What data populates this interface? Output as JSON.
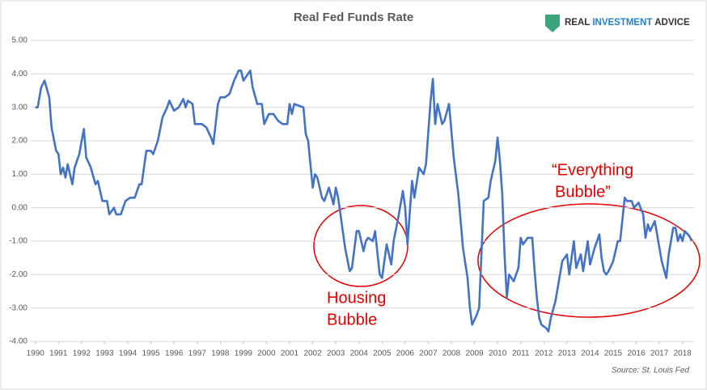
{
  "chart_data": {
    "type": "line",
    "title": "Real Fed Funds Rate",
    "logo": {
      "parts": [
        "REAL",
        "INVESTMENT",
        "ADVICE"
      ]
    },
    "source": "Source: St. Louis Fed",
    "annotations": [
      {
        "lines": [
          "Housing",
          "Bubble"
        ]
      },
      {
        "lines": [
          "“Everything",
          "Bubble”"
        ]
      }
    ],
    "xlim": [
      1989.8,
      2018.5
    ],
    "xticks": [
      1990,
      1991,
      1992,
      1993,
      1994,
      1995,
      1996,
      1997,
      1998,
      1999,
      2000,
      2001,
      2002,
      2003,
      2004,
      2005,
      2006,
      2007,
      2008,
      2009,
      2010,
      2011,
      2012,
      2013,
      2014,
      2015,
      2016,
      2017,
      2018
    ],
    "ylim": [
      -4,
      5
    ],
    "yticks": [
      {
        "value": 5,
        "label": "5.00"
      },
      {
        "value": 4,
        "label": "4.00"
      },
      {
        "value": 3,
        "label": "3.00"
      },
      {
        "value": 2,
        "label": "2.00"
      },
      {
        "value": 1,
        "label": "1.00"
      },
      {
        "value": 0,
        "label": "0.00"
      },
      {
        "value": -1,
        "label": "-1.00"
      },
      {
        "value": -2,
        "label": "-2.00"
      },
      {
        "value": -3,
        "label": "-3.00"
      },
      {
        "value": -4,
        "label": "-4.00"
      }
    ],
    "grid": true,
    "x": [
      1990.0,
      1990.1,
      1990.25,
      1990.4,
      1990.6,
      1990.7,
      1990.9,
      1991.0,
      1991.1,
      1991.2,
      1991.3,
      1991.4,
      1991.6,
      1991.7,
      1991.9,
      1992.0,
      1992.1,
      1992.2,
      1992.4,
      1992.6,
      1992.7,
      1992.9,
      1993.1,
      1993.2,
      1993.4,
      1993.5,
      1993.7,
      1993.9,
      1994.1,
      1994.3,
      1994.5,
      1994.6,
      1994.8,
      1995.0,
      1995.1,
      1995.3,
      1995.5,
      1995.7,
      1995.8,
      1996.0,
      1996.2,
      1996.4,
      1996.5,
      1996.6,
      1996.8,
      1996.9,
      1997.2,
      1997.4,
      1997.6,
      1997.7,
      1997.9,
      1998.0,
      1998.2,
      1998.4,
      1998.6,
      1998.8,
      1998.9,
      1999.0,
      1999.1,
      1999.3,
      1999.4,
      1999.6,
      1999.8,
      1999.9,
      2000.1,
      2000.3,
      2000.5,
      2000.7,
      2000.9,
      2001.0,
      2001.1,
      2001.2,
      2001.4,
      2001.6,
      2001.7,
      2001.8,
      2002.0,
      2002.1,
      2002.2,
      2002.4,
      2002.5,
      2002.7,
      2002.9,
      2003.0,
      2003.1,
      2003.2,
      2003.4,
      2003.6,
      2003.7,
      2003.9,
      2004.0,
      2004.2,
      2004.3,
      2004.4,
      2004.6,
      2004.7,
      2004.9,
      2005.0,
      2005.2,
      2005.4,
      2005.5,
      2005.7,
      2005.9,
      2006.0,
      2006.1,
      2006.3,
      2006.4,
      2006.6,
      2006.8,
      2006.9,
      2007.1,
      2007.2,
      2007.3,
      2007.4,
      2007.6,
      2007.7,
      2007.9,
      2008.1,
      2008.3,
      2008.5,
      2008.7,
      2008.8,
      2008.9,
      2009.1,
      2009.2,
      2009.4,
      2009.6,
      2009.7,
      2009.9,
      2010.0,
      2010.1,
      2010.2,
      2010.3,
      2010.4,
      2010.5,
      2010.7,
      2010.9,
      2011.0,
      2011.1,
      2011.3,
      2011.5,
      2011.6,
      2011.7,
      2011.8,
      2011.9,
      2012.1,
      2012.2,
      2012.3,
      2012.5,
      2012.8,
      2013.0,
      2013.1,
      2013.3,
      2013.4,
      2013.6,
      2013.7,
      2013.9,
      2014.0,
      2014.2,
      2014.4,
      2014.5,
      2014.6,
      2014.7,
      2014.8,
      2015.0,
      2015.2,
      2015.3,
      2015.5,
      2015.6,
      2015.8,
      2015.9,
      2016.1,
      2016.3,
      2016.4,
      2016.5,
      2016.6,
      2016.8,
      2016.9,
      2017.1,
      2017.3,
      2017.4,
      2017.6,
      2017.7,
      2017.8,
      2017.9,
      2018.0,
      2018.1,
      2018.3,
      2018.4
    ],
    "series": [
      {
        "name": "Real Fed Funds Rate",
        "color": "#4472c4",
        "values": [
          3.0,
          3.0,
          3.6,
          3.8,
          3.3,
          2.4,
          1.7,
          1.6,
          1.0,
          1.2,
          0.9,
          1.3,
          0.7,
          1.2,
          1.6,
          2.0,
          2.35,
          1.5,
          1.2,
          0.7,
          0.8,
          0.2,
          0.2,
          -0.2,
          0.0,
          -0.2,
          -0.2,
          0.2,
          0.3,
          0.3,
          0.7,
          0.7,
          1.7,
          1.7,
          1.6,
          2.0,
          2.7,
          3.0,
          3.2,
          2.9,
          3.0,
          3.25,
          3.0,
          3.2,
          3.1,
          2.5,
          2.5,
          2.4,
          2.1,
          1.9,
          3.1,
          3.3,
          3.3,
          3.4,
          3.8,
          4.1,
          4.1,
          3.8,
          3.9,
          4.1,
          3.6,
          3.1,
          3.1,
          2.5,
          2.8,
          2.8,
          2.6,
          2.5,
          2.5,
          3.1,
          2.8,
          3.1,
          3.05,
          3.0,
          2.2,
          2.0,
          0.6,
          1.0,
          0.9,
          0.3,
          0.2,
          0.6,
          0.1,
          0.6,
          0.3,
          -0.2,
          -1.2,
          -1.9,
          -1.8,
          -0.7,
          -0.7,
          -1.3,
          -1.0,
          -0.9,
          -1.0,
          -0.7,
          -2.0,
          -2.1,
          -1.1,
          -1.7,
          -1.0,
          -0.3,
          0.5,
          0.0,
          -1.1,
          0.8,
          0.3,
          1.2,
          1.0,
          1.3,
          3.2,
          3.85,
          2.5,
          3.1,
          2.5,
          2.6,
          3.1,
          1.5,
          0.4,
          -1.2,
          -2.1,
          -3.0,
          -3.5,
          -3.2,
          -3.0,
          0.2,
          0.3,
          0.8,
          1.4,
          2.1,
          1.4,
          0.4,
          -1.4,
          -2.7,
          -2.0,
          -2.2,
          -1.8,
          -0.9,
          -1.1,
          -0.9,
          -0.9,
          -1.9,
          -2.7,
          -3.3,
          -3.5,
          -3.6,
          -3.7,
          -3.3,
          -2.8,
          -1.6,
          -1.4,
          -2.0,
          -1.0,
          -1.8,
          -1.4,
          -1.9,
          -1.0,
          -1.7,
          -1.2,
          -0.8,
          -1.5,
          -1.9,
          -2.0,
          -1.9,
          -1.6,
          -1.0,
          -1.0,
          0.3,
          0.2,
          0.2,
          0.0,
          0.15,
          -0.2,
          -0.9,
          -0.5,
          -0.7,
          -0.4,
          -0.8,
          -1.6,
          -2.1,
          -1.4,
          -0.6,
          -0.6,
          -1.0,
          -0.8,
          -1.0,
          -0.7,
          -0.85,
          -1.0
        ]
      }
    ]
  }
}
